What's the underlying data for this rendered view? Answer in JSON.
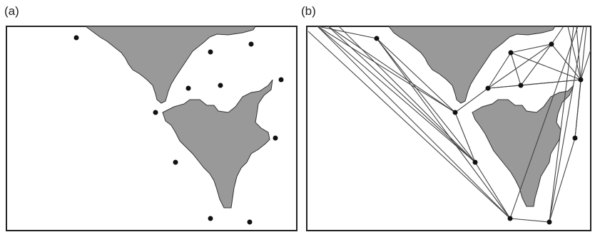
{
  "panels": {
    "a": {
      "label": "(a)"
    },
    "b": {
      "label": "(b)"
    }
  },
  "colors": {
    "obstacle_fill": "#999999",
    "obstacle_stroke": "#333333",
    "frame": "#222222",
    "waypoint": "#111111",
    "edge": "#444444"
  }
}
